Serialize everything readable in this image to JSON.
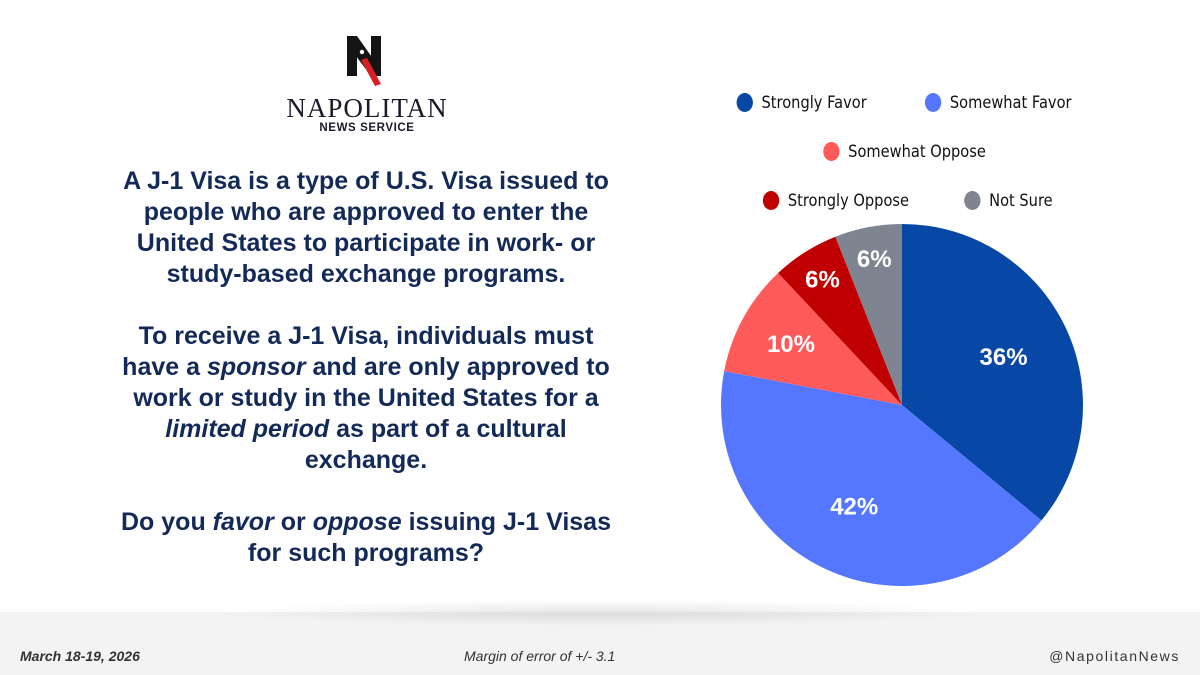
{
  "branding": {
    "logo_letter": "N",
    "name": "NAPOLITAN",
    "subtitle": "NEWS SERVICE"
  },
  "question": {
    "p1": "A J-1 Visa is a type of U.S. Visa issued to people who are approved to enter the United States to participate in work- or study-based exchange programs.",
    "p2_a": "To receive a J-1 Visa, individuals must have a ",
    "p2_em1": "sponsor",
    "p2_b": " and are only approved to work or study in the United States for a ",
    "p2_em2": "limited period",
    "p2_c": " as part of a cultural exchange.",
    "p3_a": "Do you ",
    "p3_em1": "favor",
    "p3_b": " or ",
    "p3_em2": "oppose",
    "p3_c": " issuing J-1 Visas for such programs?"
  },
  "footer": {
    "date": "March 18-19, 2026",
    "margin": "Margin of error of +/- 3.1",
    "handle": "@NapolitanNews"
  },
  "chart_data": {
    "type": "pie",
    "title": "",
    "start_angle_deg": 0,
    "direction": "clockwise",
    "legend_position": "top",
    "slices": [
      {
        "label": "Strongly Favor",
        "value": 36,
        "display": "36%",
        "color": "#0747a6"
      },
      {
        "label": "Somewhat Favor",
        "value": 42,
        "display": "42%",
        "color": "#5577ff"
      },
      {
        "label": "Somewhat Oppose",
        "value": 10,
        "display": "10%",
        "color": "#ff5a5a"
      },
      {
        "label": "Strongly Oppose",
        "value": 6,
        "display": "6%",
        "color": "#c00000"
      },
      {
        "label": "Not Sure",
        "value": 6,
        "display": "6%",
        "color": "#7f8590"
      }
    ]
  }
}
